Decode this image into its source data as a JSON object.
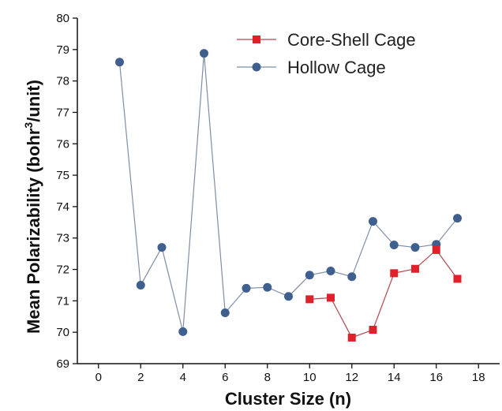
{
  "chart_data": {
    "type": "line",
    "xlabel": "Cluster Size (n)",
    "ylabel_main": "Mean Polarizability (bohr",
    "ylabel_sup": "3",
    "ylabel_tail": "/unit)",
    "xlim": [
      -1,
      19
    ],
    "ylim": [
      69,
      80
    ],
    "x_ticks": [
      0,
      2,
      4,
      6,
      8,
      10,
      12,
      14,
      16,
      18
    ],
    "y_ticks": [
      69,
      70,
      71,
      72,
      73,
      74,
      75,
      76,
      77,
      78,
      79,
      80
    ],
    "grid": false,
    "legend_position": "top-right",
    "series": [
      {
        "name": "Core-Shell Cage",
        "marker": "square",
        "color": "#e0202a",
        "line_color": "#b04850",
        "x": [
          10,
          11,
          12,
          13,
          14,
          15,
          16,
          17
        ],
        "values": [
          71.05,
          71.1,
          69.83,
          70.08,
          71.88,
          72.02,
          72.62,
          71.7
        ]
      },
      {
        "name": "Hollow Cage",
        "marker": "circle",
        "color": "#3f5f8e",
        "line_color": "#7e8ea6",
        "x": [
          1,
          2,
          3,
          4,
          5,
          6,
          7,
          8,
          9,
          10,
          11,
          12,
          13,
          14,
          15,
          16,
          17
        ],
        "values": [
          78.6,
          71.5,
          72.7,
          70.02,
          78.88,
          70.62,
          71.4,
          71.43,
          71.14,
          71.82,
          71.95,
          71.77,
          73.53,
          72.78,
          72.7,
          72.8,
          73.63
        ]
      }
    ]
  }
}
